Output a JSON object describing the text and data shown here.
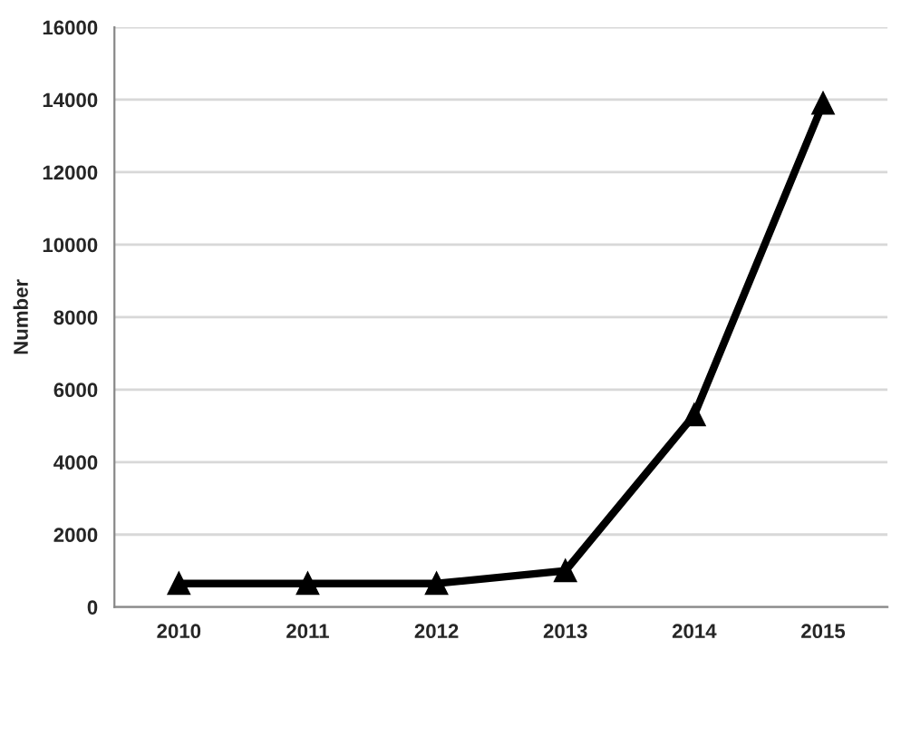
{
  "chart_data": {
    "type": "line",
    "ylabel": "Number",
    "categories": [
      "2010",
      "2011",
      "2012",
      "2013",
      "2014",
      "2015"
    ],
    "series": [
      {
        "color": "#000000",
        "values": [
          650,
          650,
          650,
          1000,
          5300,
          13900
        ]
      }
    ],
    "ylim": [
      0,
      16000
    ],
    "yticks": [
      0,
      2000,
      4000,
      6000,
      8000,
      10000,
      12000,
      14000,
      16000
    ],
    "grid": "y",
    "marker": "triangle",
    "line_style": "solid",
    "legend": false
  }
}
